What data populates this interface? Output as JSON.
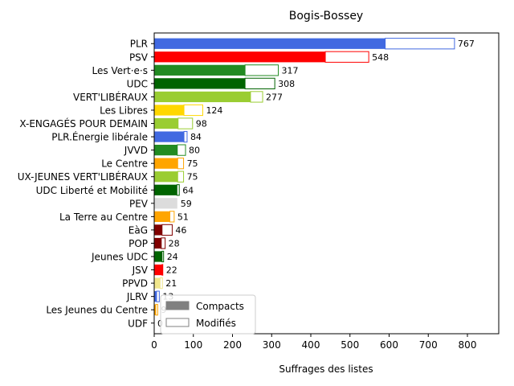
{
  "chart_data": {
    "type": "bar",
    "orientation": "horizontal",
    "title": "Bogis-Bossey",
    "xlabel": "Suffrages des listes",
    "ylabel": "",
    "xlim": [
      0,
      880
    ],
    "xticks": [
      0,
      100,
      200,
      300,
      400,
      500,
      600,
      700,
      800
    ],
    "legend": {
      "position": "lower-left",
      "entries": [
        {
          "label": "Compacts",
          "color": "#808080",
          "style": "filled"
        },
        {
          "label": "Modifiés",
          "color": "#808080",
          "style": "outline"
        }
      ]
    },
    "categories": [
      "PLR",
      "PSV",
      "Les Vert·e·s",
      "UDC",
      "VERT'LIBÉRAUX",
      "Les Libres",
      "X-ENGAGÉS POUR DEMAIN",
      "PLR.Énergie libérale",
      "JVVD",
      "Le Centre",
      "UX-JEUNES VERT'LIBÉRAUX",
      "UDC Liberté et Mobilité",
      "PEV",
      "La Terre au Centre",
      "EàG",
      "POP",
      "Jeunes UDC",
      "JSV",
      "PPVD",
      "JLRV",
      "Les Jeunes du Centre",
      "UDF"
    ],
    "series": [
      {
        "name": "Compacts",
        "values": [
          590,
          437,
          232,
          232,
          246,
          76,
          61,
          76,
          59,
          60,
          60,
          58,
          59,
          40,
          20,
          18,
          20,
          20,
          15,
          6,
          4,
          0
        ]
      },
      {
        "name": "Modifiés",
        "values": [
          177,
          111,
          85,
          76,
          31,
          48,
          37,
          8,
          21,
          15,
          15,
          6,
          0,
          11,
          26,
          10,
          4,
          2,
          6,
          7,
          5,
          0
        ]
      }
    ],
    "totals": [
      767,
      548,
      317,
      308,
      277,
      124,
      98,
      84,
      80,
      75,
      75,
      64,
      59,
      51,
      46,
      28,
      24,
      22,
      21,
      13,
      9,
      0
    ],
    "colors": [
      "#4169e1",
      "#ff0000",
      "#228b22",
      "#006400",
      "#9acd32",
      "#ffd700",
      "#9acd32",
      "#4169e1",
      "#228b22",
      "#ffa500",
      "#9acd32",
      "#006400",
      "#dcdcdc",
      "#ffa500",
      "#800000",
      "#800000",
      "#006400",
      "#ff0000",
      "#f0e68c",
      "#4169e1",
      "#ffa500",
      "#4169e1"
    ]
  }
}
